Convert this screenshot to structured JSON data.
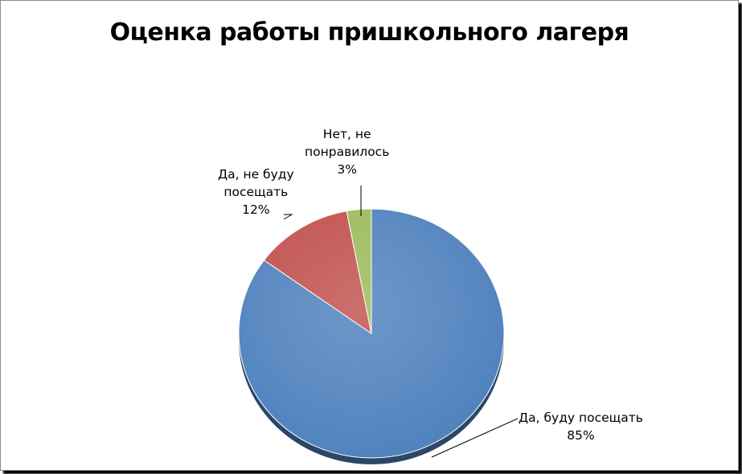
{
  "chart_data": {
    "type": "pie",
    "title": "Оценка работы пришкольного лагеря",
    "slices": [
      {
        "name": "Да, буду посещать",
        "value": 85,
        "label": "85%",
        "label_lines": [
          "Да, буду посещать",
          "85%"
        ],
        "color": "#4f81bd"
      },
      {
        "name": "Да, не буду посещать",
        "value": 12,
        "label": "12%",
        "label_lines": [
          "Да, не буду",
          "посещать",
          "12%"
        ],
        "color": "#c0504d"
      },
      {
        "name": "Нет, не понравилось",
        "value": 3,
        "label": "3%",
        "label_lines": [
          "Нет, не",
          "понравилось",
          "3%"
        ],
        "color": "#9bbb59"
      }
    ],
    "start_angle_deg": 0,
    "direction": "clockwise",
    "legend": "none"
  }
}
